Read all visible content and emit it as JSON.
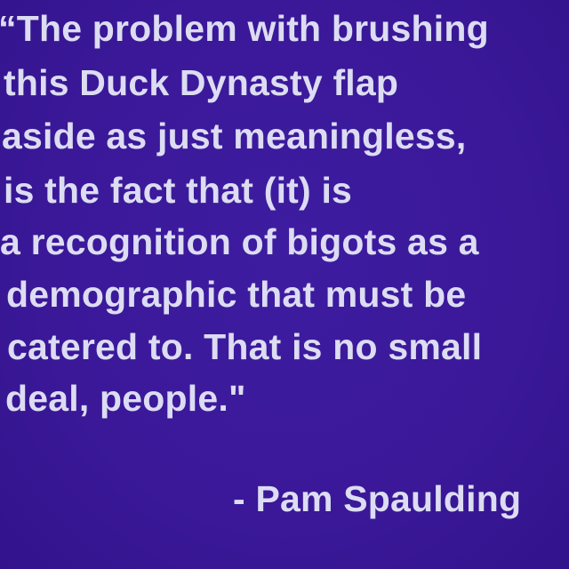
{
  "quote": {
    "lines": [
      "“The problem with brushing",
      "this Duck Dynasty flap",
      "aside as just meaningless,",
      "is the fact that (it) is",
      "a recognition of bigots as a",
      "demographic that must be",
      "catered to. That is no small",
      "deal, people.\""
    ],
    "attribution": "- Pam Spaulding"
  }
}
